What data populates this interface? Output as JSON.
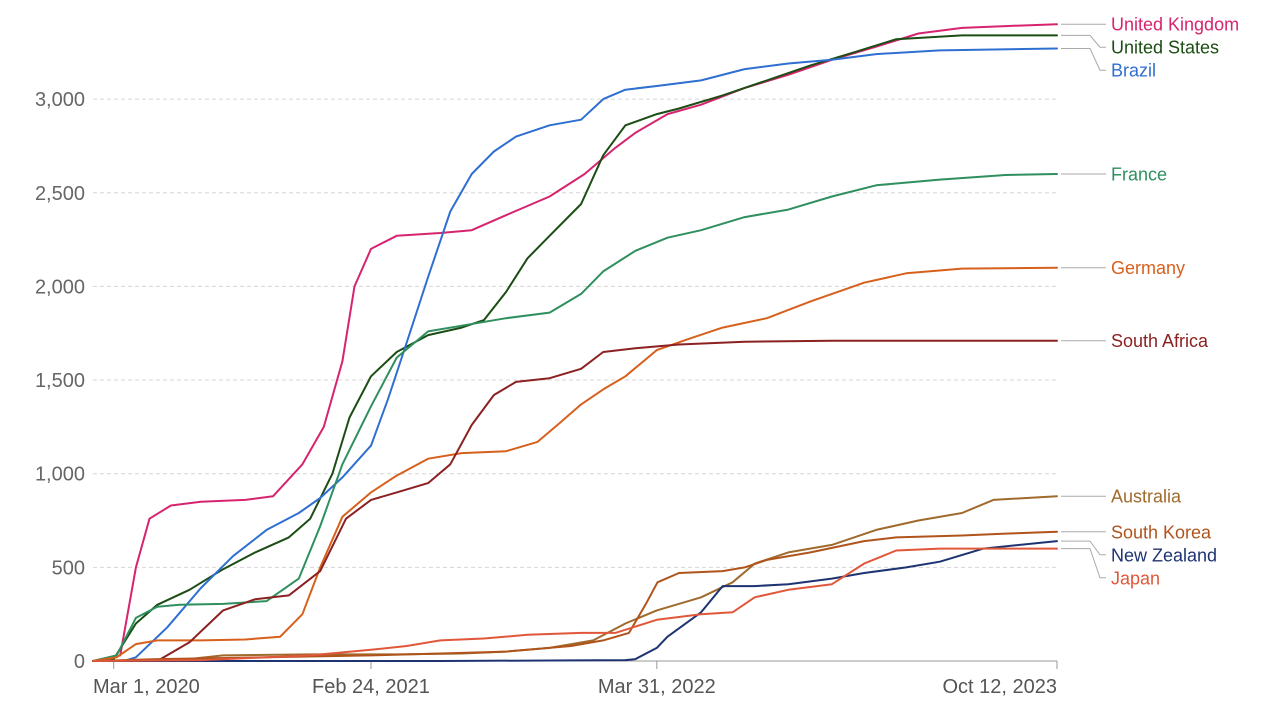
{
  "chart_data": {
    "type": "line",
    "x_type": "date",
    "ylim": [
      0,
      3400
    ],
    "xlim": [
      "2020-02-01",
      "2023-10-12"
    ],
    "grid": true,
    "legend_placement": "right-end-labels",
    "yticks": [
      {
        "value": 0,
        "label": "0"
      },
      {
        "value": 500,
        "label": "500"
      },
      {
        "value": 1000,
        "label": "1,000"
      },
      {
        "value": 1500,
        "label": "1,500"
      },
      {
        "value": 2000,
        "label": "2,000"
      },
      {
        "value": 2500,
        "label": "2,500"
      },
      {
        "value": 3000,
        "label": "3,000"
      }
    ],
    "xticks": [
      {
        "value": "2020-03-01",
        "label": "Mar 1, 2020"
      },
      {
        "value": "2021-02-24",
        "label": "Feb 24, 2021"
      },
      {
        "value": "2022-03-31",
        "label": "Mar 31, 2022"
      },
      {
        "value": "2023-10-12",
        "label": "Oct 12, 2023"
      }
    ],
    "series": [
      {
        "name": "United Kingdom",
        "color": "#d6246e",
        "points": [
          [
            "2020-02-01",
            0
          ],
          [
            "2020-03-10",
            30
          ],
          [
            "2020-04-01",
            500
          ],
          [
            "2020-04-20",
            760
          ],
          [
            "2020-05-20",
            830
          ],
          [
            "2020-07-01",
            850
          ],
          [
            "2020-09-01",
            860
          ],
          [
            "2020-10-10",
            880
          ],
          [
            "2020-11-20",
            1050
          ],
          [
            "2020-12-20",
            1250
          ],
          [
            "2021-01-15",
            1600
          ],
          [
            "2021-02-01",
            2000
          ],
          [
            "2021-02-24",
            2200
          ],
          [
            "2021-04-01",
            2270
          ],
          [
            "2021-06-01",
            2285
          ],
          [
            "2021-07-15",
            2300
          ],
          [
            "2021-09-01",
            2380
          ],
          [
            "2021-11-01",
            2480
          ],
          [
            "2021-12-20",
            2600
          ],
          [
            "2022-02-01",
            2740
          ],
          [
            "2022-03-01",
            2820
          ],
          [
            "2022-04-15",
            2920
          ],
          [
            "2022-06-01",
            2970
          ],
          [
            "2022-08-01",
            3060
          ],
          [
            "2022-10-01",
            3130
          ],
          [
            "2022-12-01",
            3210
          ],
          [
            "2023-02-01",
            3280
          ],
          [
            "2023-04-01",
            3350
          ],
          [
            "2023-06-01",
            3380
          ],
          [
            "2023-08-01",
            3390
          ],
          [
            "2023-10-12",
            3400
          ]
        ]
      },
      {
        "name": "United States",
        "color": "#1b4d14",
        "points": [
          [
            "2020-02-01",
            0
          ],
          [
            "2020-03-01",
            10
          ],
          [
            "2020-04-01",
            200
          ],
          [
            "2020-05-01",
            300
          ],
          [
            "2020-06-15",
            380
          ],
          [
            "2020-08-01",
            490
          ],
          [
            "2020-09-15",
            580
          ],
          [
            "2020-11-01",
            660
          ],
          [
            "2020-12-01",
            760
          ],
          [
            "2021-01-01",
            1000
          ],
          [
            "2021-01-25",
            1300
          ],
          [
            "2021-02-24",
            1520
          ],
          [
            "2021-04-01",
            1650
          ],
          [
            "2021-05-15",
            1740
          ],
          [
            "2021-07-01",
            1780
          ],
          [
            "2021-08-01",
            1820
          ],
          [
            "2021-09-01",
            1970
          ],
          [
            "2021-10-01",
            2150
          ],
          [
            "2021-11-01",
            2270
          ],
          [
            "2021-12-15",
            2440
          ],
          [
            "2022-01-15",
            2700
          ],
          [
            "2022-02-15",
            2860
          ],
          [
            "2022-03-31",
            2920
          ],
          [
            "2022-05-01",
            2950
          ],
          [
            "2022-07-01",
            3020
          ],
          [
            "2022-09-01",
            3100
          ],
          [
            "2022-11-01",
            3180
          ],
          [
            "2023-01-01",
            3250
          ],
          [
            "2023-03-01",
            3320
          ],
          [
            "2023-06-01",
            3340
          ],
          [
            "2023-10-12",
            3340
          ]
        ]
      },
      {
        "name": "Brazil",
        "color": "#2f6fd1",
        "points": [
          [
            "2020-02-01",
            0
          ],
          [
            "2020-03-15",
            0
          ],
          [
            "2020-04-01",
            20
          ],
          [
            "2020-05-15",
            180
          ],
          [
            "2020-07-01",
            390
          ],
          [
            "2020-08-15",
            560
          ],
          [
            "2020-10-01",
            700
          ],
          [
            "2020-11-15",
            790
          ],
          [
            "2020-12-15",
            870
          ],
          [
            "2021-01-15",
            980
          ],
          [
            "2021-02-24",
            1150
          ],
          [
            "2021-03-20",
            1400
          ],
          [
            "2021-04-15",
            1700
          ],
          [
            "2021-05-15",
            2050
          ],
          [
            "2021-06-15",
            2400
          ],
          [
            "2021-07-15",
            2600
          ],
          [
            "2021-08-15",
            2720
          ],
          [
            "2021-09-15",
            2800
          ],
          [
            "2021-11-01",
            2860
          ],
          [
            "2021-12-15",
            2890
          ],
          [
            "2022-01-15",
            3000
          ],
          [
            "2022-02-15",
            3050
          ],
          [
            "2022-03-31",
            3070
          ],
          [
            "2022-06-01",
            3100
          ],
          [
            "2022-08-01",
            3160
          ],
          [
            "2022-10-01",
            3190
          ],
          [
            "2022-12-01",
            3210
          ],
          [
            "2023-02-01",
            3240
          ],
          [
            "2023-05-01",
            3260
          ],
          [
            "2023-10-12",
            3270
          ]
        ]
      },
      {
        "name": "France",
        "color": "#2f8f5f",
        "points": [
          [
            "2020-02-01",
            0
          ],
          [
            "2020-03-05",
            30
          ],
          [
            "2020-04-01",
            230
          ],
          [
            "2020-05-01",
            290
          ],
          [
            "2020-06-01",
            300
          ],
          [
            "2020-08-01",
            305
          ],
          [
            "2020-10-01",
            320
          ],
          [
            "2020-11-15",
            440
          ],
          [
            "2020-12-15",
            720
          ],
          [
            "2021-01-15",
            1050
          ],
          [
            "2021-02-24",
            1360
          ],
          [
            "2021-04-01",
            1620
          ],
          [
            "2021-05-15",
            1760
          ],
          [
            "2021-07-01",
            1790
          ],
          [
            "2021-09-01",
            1830
          ],
          [
            "2021-11-01",
            1860
          ],
          [
            "2021-12-15",
            1960
          ],
          [
            "2022-01-15",
            2080
          ],
          [
            "2022-03-01",
            2190
          ],
          [
            "2022-04-15",
            2260
          ],
          [
            "2022-06-01",
            2300
          ],
          [
            "2022-08-01",
            2370
          ],
          [
            "2022-10-01",
            2410
          ],
          [
            "2022-12-01",
            2480
          ],
          [
            "2023-02-01",
            2540
          ],
          [
            "2023-05-01",
            2570
          ],
          [
            "2023-08-01",
            2595
          ],
          [
            "2023-10-12",
            2600
          ]
        ]
      },
      {
        "name": "Germany",
        "color": "#d7601d",
        "points": [
          [
            "2020-02-01",
            0
          ],
          [
            "2020-03-05",
            20
          ],
          [
            "2020-04-01",
            90
          ],
          [
            "2020-05-01",
            110
          ],
          [
            "2020-07-01",
            110
          ],
          [
            "2020-09-01",
            115
          ],
          [
            "2020-10-20",
            130
          ],
          [
            "2020-11-20",
            250
          ],
          [
            "2020-12-15",
            500
          ],
          [
            "2021-01-15",
            770
          ],
          [
            "2021-02-24",
            900
          ],
          [
            "2021-04-01",
            990
          ],
          [
            "2021-05-15",
            1080
          ],
          [
            "2021-07-01",
            1110
          ],
          [
            "2021-09-01",
            1120
          ],
          [
            "2021-10-15",
            1170
          ],
          [
            "2021-11-15",
            1270
          ],
          [
            "2021-12-15",
            1370
          ],
          [
            "2022-01-15",
            1450
          ],
          [
            "2022-02-15",
            1520
          ],
          [
            "2022-03-31",
            1660
          ],
          [
            "2022-05-15",
            1720
          ],
          [
            "2022-07-01",
            1780
          ],
          [
            "2022-09-01",
            1830
          ],
          [
            "2022-11-01",
            1920
          ],
          [
            "2023-01-15",
            2020
          ],
          [
            "2023-03-15",
            2070
          ],
          [
            "2023-06-01",
            2095
          ],
          [
            "2023-10-12",
            2100
          ]
        ]
      },
      {
        "name": "South Africa",
        "color": "#8c2121",
        "points": [
          [
            "2020-02-01",
            0
          ],
          [
            "2020-05-01",
            0
          ],
          [
            "2020-06-15",
            100
          ],
          [
            "2020-08-01",
            270
          ],
          [
            "2020-09-15",
            330
          ],
          [
            "2020-11-01",
            350
          ],
          [
            "2020-12-15",
            480
          ],
          [
            "2021-01-20",
            760
          ],
          [
            "2021-02-24",
            860
          ],
          [
            "2021-04-01",
            900
          ],
          [
            "2021-05-15",
            950
          ],
          [
            "2021-06-15",
            1050
          ],
          [
            "2021-07-15",
            1260
          ],
          [
            "2021-08-15",
            1420
          ],
          [
            "2021-09-15",
            1490
          ],
          [
            "2021-11-01",
            1510
          ],
          [
            "2021-12-15",
            1560
          ],
          [
            "2022-01-15",
            1650
          ],
          [
            "2022-03-01",
            1670
          ],
          [
            "2022-05-01",
            1690
          ],
          [
            "2022-08-01",
            1705
          ],
          [
            "2022-12-01",
            1710
          ],
          [
            "2023-10-12",
            1710
          ]
        ]
      },
      {
        "name": "Australia",
        "color": "#a06a2c",
        "points": [
          [
            "2020-02-01",
            0
          ],
          [
            "2020-06-01",
            5
          ],
          [
            "2020-08-01",
            30
          ],
          [
            "2020-12-01",
            35
          ],
          [
            "2021-04-01",
            35
          ],
          [
            "2021-07-01",
            40
          ],
          [
            "2021-09-01",
            50
          ],
          [
            "2021-11-01",
            70
          ],
          [
            "2022-01-01",
            110
          ],
          [
            "2022-02-15",
            200
          ],
          [
            "2022-03-31",
            270
          ],
          [
            "2022-06-01",
            340
          ],
          [
            "2022-07-15",
            420
          ],
          [
            "2022-08-15",
            520
          ],
          [
            "2022-10-01",
            580
          ],
          [
            "2022-12-01",
            620
          ],
          [
            "2023-02-01",
            700
          ],
          [
            "2023-04-01",
            750
          ],
          [
            "2023-06-01",
            790
          ],
          [
            "2023-07-15",
            860
          ],
          [
            "2023-10-12",
            880
          ]
        ]
      },
      {
        "name": "South Korea",
        "color": "#b0541c",
        "points": [
          [
            "2020-02-01",
            0
          ],
          [
            "2020-05-01",
            10
          ],
          [
            "2020-10-01",
            20
          ],
          [
            "2021-02-24",
            30
          ],
          [
            "2021-06-01",
            40
          ],
          [
            "2021-09-01",
            50
          ],
          [
            "2021-12-01",
            80
          ],
          [
            "2022-01-15",
            110
          ],
          [
            "2022-02-20",
            150
          ],
          [
            "2022-03-15",
            300
          ],
          [
            "2022-04-01",
            420
          ],
          [
            "2022-05-01",
            470
          ],
          [
            "2022-07-01",
            480
          ],
          [
            "2022-08-01",
            500
          ],
          [
            "2022-09-01",
            540
          ],
          [
            "2022-11-01",
            580
          ],
          [
            "2023-01-15",
            640
          ],
          [
            "2023-03-01",
            660
          ],
          [
            "2023-06-01",
            670
          ],
          [
            "2023-08-01",
            680
          ],
          [
            "2023-10-12",
            690
          ]
        ]
      },
      {
        "name": "New Zealand",
        "color": "#1e3472",
        "points": [
          [
            "2020-02-01",
            0
          ],
          [
            "2020-03-15",
            0
          ],
          [
            "2021-06-01",
            0
          ],
          [
            "2021-12-01",
            3
          ],
          [
            "2022-02-15",
            5
          ],
          [
            "2022-03-01",
            10
          ],
          [
            "2022-03-31",
            70
          ],
          [
            "2022-04-15",
            130
          ],
          [
            "2022-06-01",
            260
          ],
          [
            "2022-07-01",
            400
          ],
          [
            "2022-08-15",
            400
          ],
          [
            "2022-10-01",
            410
          ],
          [
            "2022-12-01",
            440
          ],
          [
            "2023-01-15",
            470
          ],
          [
            "2023-03-15",
            500
          ],
          [
            "2023-05-01",
            530
          ],
          [
            "2023-07-01",
            600
          ],
          [
            "2023-10-12",
            640
          ]
        ]
      },
      {
        "name": "Japan",
        "color": "#e0573a",
        "points": [
          [
            "2020-02-01",
            0
          ],
          [
            "2020-07-01",
            5
          ],
          [
            "2020-12-01",
            30
          ],
          [
            "2021-02-24",
            60
          ],
          [
            "2021-04-15",
            80
          ],
          [
            "2021-06-01",
            110
          ],
          [
            "2021-08-01",
            120
          ],
          [
            "2021-10-01",
            140
          ],
          [
            "2021-12-15",
            150
          ],
          [
            "2022-02-01",
            150
          ],
          [
            "2022-03-31",
            220
          ],
          [
            "2022-06-01",
            250
          ],
          [
            "2022-07-15",
            260
          ],
          [
            "2022-08-15",
            340
          ],
          [
            "2022-10-01",
            380
          ],
          [
            "2022-12-01",
            410
          ],
          [
            "2023-01-15",
            520
          ],
          [
            "2023-03-01",
            590
          ],
          [
            "2023-05-01",
            600
          ],
          [
            "2023-10-12",
            600
          ]
        ]
      }
    ]
  }
}
